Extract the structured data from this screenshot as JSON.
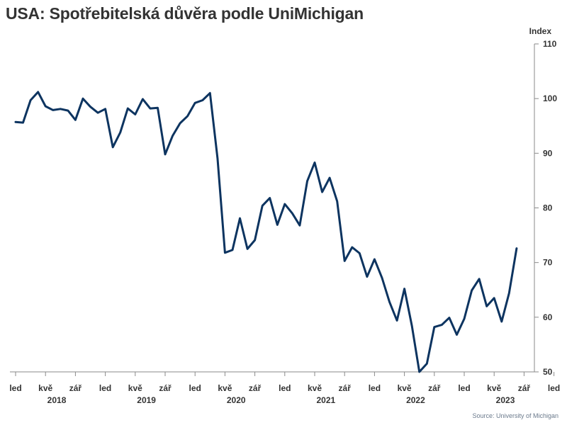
{
  "title": "USA: Spotřebitelská důvěra podle UniMichigan",
  "source": "Source: University of Michigan",
  "chart_data": {
    "type": "line",
    "title": "USA: Spotřebitelská důvěra podle UniMichigan",
    "ylabel": "Index",
    "xlabel": "",
    "ylim": [
      50,
      110
    ],
    "y_ticks": [
      50,
      60,
      70,
      80,
      90,
      100,
      110
    ],
    "y_axis_side": "right",
    "grid": false,
    "line_color": "#0d3460",
    "x_month_labels": [
      "led",
      "kvě",
      "zář"
    ],
    "years": [
      "2018",
      "2019",
      "2020",
      "2021",
      "2022",
      "2023"
    ],
    "x_start": "2018-01",
    "series": [
      {
        "values": [
          95.7,
          95.6,
          99.7,
          101.2,
          98.6,
          97.9,
          98.1,
          97.8,
          96.1,
          100.0,
          98.5,
          97.4,
          98.1,
          91.1,
          93.8,
          98.2,
          97.1,
          99.9,
          98.2,
          98.3,
          89.8,
          93.2,
          95.5,
          96.8,
          99.2,
          99.7,
          101.0,
          89.1,
          71.8,
          72.3,
          78.1,
          72.5,
          74.1,
          80.4,
          81.8,
          76.9,
          80.7,
          79.0,
          76.8,
          84.9,
          88.3,
          82.9,
          85.5,
          81.2,
          70.3,
          72.8,
          71.7,
          67.4,
          70.6,
          67.2,
          62.8,
          59.4,
          65.2,
          58.4,
          50.0,
          51.5,
          58.2,
          58.6,
          59.9,
          56.8,
          59.7,
          64.9,
          67.0,
          62.0,
          63.5,
          59.2,
          64.4,
          72.6
        ]
      }
    ]
  }
}
